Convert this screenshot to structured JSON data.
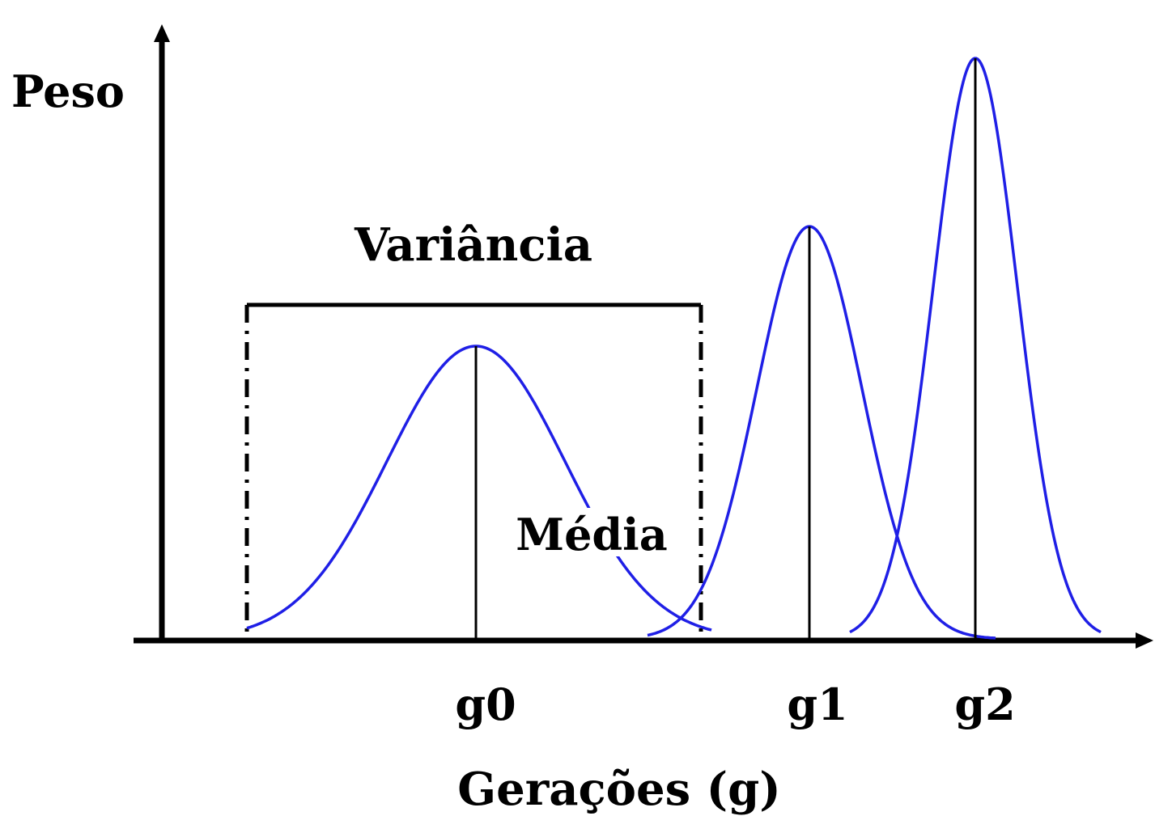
{
  "diagram": {
    "y_axis_label": "Peso",
    "x_axis_label": "Gerações (g)",
    "variance_label": "Variância",
    "mean_label": "Média",
    "colors": {
      "curve": "#1f1fe6",
      "axis": "#000000",
      "mean_line": "#000000",
      "text": "#000000"
    },
    "generations": [
      {
        "label": "g0"
      },
      {
        "label": "g1"
      },
      {
        "label": "g2"
      }
    ]
  }
}
